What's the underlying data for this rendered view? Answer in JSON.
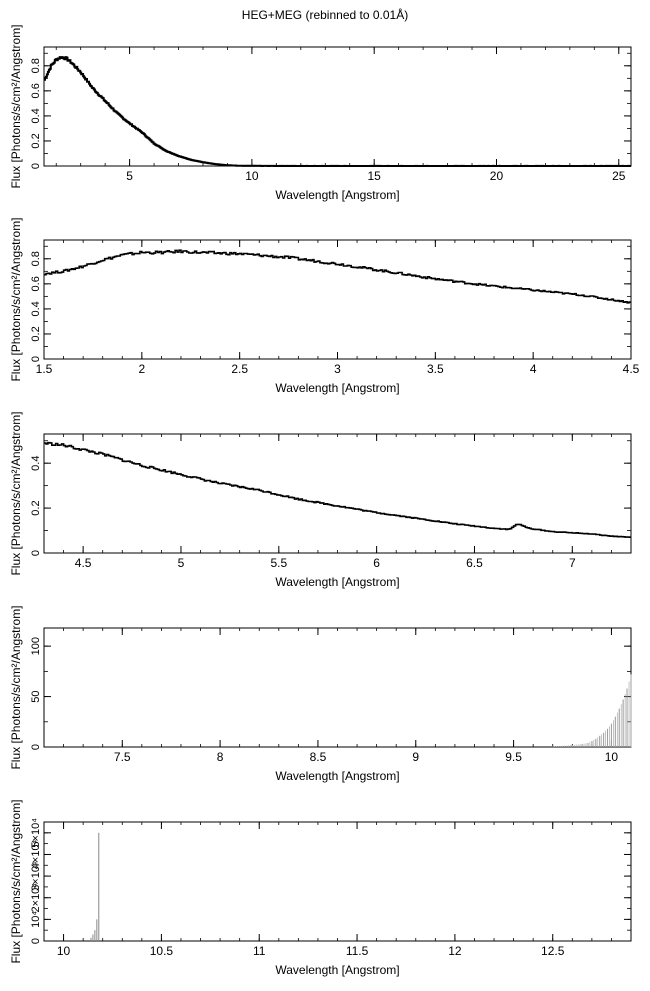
{
  "title": "HEG+MEG (rebinned to 0.01Å)",
  "chart_data": [
    {
      "type": "line",
      "xlabel": "Wavelength [Angstrom]",
      "ylabel": "Flux [Photons/s/cm²/Angstrom]",
      "xlim": [
        1.5,
        25.5
      ],
      "ylim": [
        0,
        0.95
      ],
      "xticks": [
        5,
        10,
        15,
        20,
        25
      ],
      "yticks": [
        0,
        0.2,
        0.4,
        0.6,
        0.8
      ],
      "ytick_labels": [
        "0",
        "0.2",
        "0.4",
        "0.6",
        "0.8"
      ],
      "series": [
        {
          "x": [
            1.5,
            1.6,
            1.8,
            2.0,
            2.2,
            2.4,
            2.6,
            3.0,
            3.5,
            4.0,
            4.5,
            5.0,
            5.5,
            6.0,
            6.5,
            7.0,
            7.5,
            8.0,
            8.5,
            9.0,
            9.5,
            10.0,
            12.0,
            15.0,
            20.0,
            25.5
          ],
          "y": [
            0.68,
            0.72,
            0.8,
            0.85,
            0.87,
            0.86,
            0.83,
            0.75,
            0.62,
            0.52,
            0.42,
            0.34,
            0.27,
            0.18,
            0.12,
            0.08,
            0.05,
            0.03,
            0.015,
            0.006,
            0.002,
            0.001,
            0,
            0,
            0,
            0
          ]
        }
      ]
    },
    {
      "type": "line",
      "xlabel": "Wavelength [Angstrom]",
      "ylabel": "Flux [Photons/s/cm²/Angstrom]",
      "xlim": [
        1.5,
        4.5
      ],
      "ylim": [
        0,
        0.95
      ],
      "xticks": [
        1.5,
        2,
        2.5,
        3,
        3.5,
        4,
        4.5
      ],
      "yticks": [
        0,
        0.2,
        0.4,
        0.6,
        0.8
      ],
      "ytick_labels": [
        "0",
        "0.2",
        "0.4",
        "0.6",
        "0.8"
      ],
      "series": [
        {
          "x": [
            1.5,
            1.6,
            1.7,
            1.8,
            1.9,
            2.0,
            2.1,
            2.2,
            2.3,
            2.5,
            2.75,
            3.0,
            3.25,
            3.5,
            3.75,
            4.0,
            4.25,
            4.5
          ],
          "y": [
            0.68,
            0.7,
            0.74,
            0.79,
            0.83,
            0.85,
            0.85,
            0.86,
            0.85,
            0.84,
            0.81,
            0.76,
            0.7,
            0.64,
            0.59,
            0.55,
            0.51,
            0.45
          ]
        }
      ]
    },
    {
      "type": "line",
      "xlabel": "Wavelength [Angstrom]",
      "ylabel": "Flux [Photons/s/cm²/Angstrom]",
      "xlim": [
        4.3,
        7.3
      ],
      "ylim": [
        0,
        0.53
      ],
      "xticks": [
        4.5,
        5,
        5.5,
        6,
        6.5,
        7
      ],
      "yticks": [
        0,
        0.2,
        0.4
      ],
      "ytick_labels": [
        "0",
        "0.2",
        "0.4"
      ],
      "series": [
        {
          "x": [
            4.3,
            4.4,
            4.5,
            4.6,
            4.8,
            5.0,
            5.2,
            5.4,
            5.6,
            5.8,
            6.0,
            6.2,
            6.4,
            6.6,
            6.68,
            6.72,
            6.78,
            6.9,
            7.0,
            7.1,
            7.2,
            7.3
          ],
          "y": [
            0.49,
            0.48,
            0.46,
            0.44,
            0.39,
            0.35,
            0.31,
            0.28,
            0.24,
            0.21,
            0.18,
            0.155,
            0.13,
            0.11,
            0.105,
            0.13,
            0.11,
            0.095,
            0.09,
            0.085,
            0.075,
            0.07
          ]
        }
      ]
    },
    {
      "type": "bar",
      "xlabel": "Wavelength [Angstrom]",
      "ylabel": "Flux [Photons/s/cm²/Angstrom]",
      "xlim": [
        7.1,
        10.1
      ],
      "ylim": [
        0,
        118
      ],
      "xticks": [
        7.5,
        8,
        8.5,
        9,
        9.5,
        10
      ],
      "yticks": [
        0,
        50,
        100
      ],
      "ytick_labels": [
        "0",
        "50",
        "100"
      ],
      "series": [
        {
          "x": [
            9.7,
            9.75,
            9.8,
            9.85,
            9.88,
            9.9,
            9.92,
            9.94,
            9.96,
            9.98,
            10.0,
            10.02,
            10.04,
            10.06,
            10.08,
            10.1
          ],
          "y": [
            0.5,
            1,
            2,
            3,
            4,
            6,
            8,
            11,
            14,
            18,
            23,
            30,
            38,
            47,
            58,
            72
          ]
        }
      ]
    },
    {
      "type": "bar",
      "xlabel": "Wavelength [Angstrom]",
      "ylabel": "Flux [Photons/s/cm²/Angstrom]",
      "xlim": [
        9.9,
        12.9
      ],
      "ylim": [
        0,
        55000
      ],
      "xticks": [
        10,
        10.5,
        11,
        11.5,
        12,
        12.5
      ],
      "yticks": [
        0,
        10000,
        20000,
        30000,
        40000,
        50000
      ],
      "ytick_labels": [
        "0",
        "10⁴",
        "2×10⁴",
        "3×10⁴",
        "4×10⁴",
        "5×10⁴"
      ],
      "series": [
        {
          "x": [
            10.12,
            10.14,
            10.15,
            10.16,
            10.17,
            10.18
          ],
          "y": [
            500,
            1500,
            3000,
            5000,
            10000,
            50000
          ]
        }
      ]
    }
  ]
}
